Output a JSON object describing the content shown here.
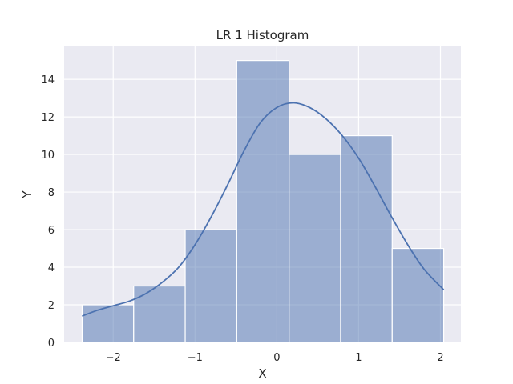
{
  "chart_data": {
    "type": "bar",
    "title": "LR 1 Histogram",
    "xlabel": "X",
    "ylabel": "Y",
    "xlim": [
      -2.6,
      2.25
    ],
    "ylim": [
      0,
      15.75
    ],
    "xticks": [
      -2,
      -1,
      0,
      1,
      2
    ],
    "xtick_labels": [
      "−2",
      "−1",
      "0",
      "1",
      "2"
    ],
    "yticks": [
      0,
      2,
      4,
      6,
      8,
      10,
      12,
      14
    ],
    "ytick_labels": [
      "0",
      "2",
      "4",
      "6",
      "8",
      "10",
      "12",
      "14"
    ],
    "grid": true,
    "bins": [
      {
        "x0": -2.38,
        "x1": -1.75,
        "count": 2
      },
      {
        "x0": -1.75,
        "x1": -1.12,
        "count": 3
      },
      {
        "x0": -1.12,
        "x1": -0.49,
        "count": 6
      },
      {
        "x0": -0.49,
        "x1": 0.15,
        "count": 15
      },
      {
        "x0": 0.15,
        "x1": 0.78,
        "count": 10
      },
      {
        "x0": 0.78,
        "x1": 1.41,
        "count": 11
      },
      {
        "x0": 1.41,
        "x1": 2.04,
        "count": 5
      }
    ],
    "kde": {
      "x": [
        -2.38,
        -2.2,
        -2.0,
        -1.8,
        -1.6,
        -1.4,
        -1.2,
        -1.0,
        -0.8,
        -0.6,
        -0.4,
        -0.2,
        0.0,
        0.2,
        0.4,
        0.6,
        0.8,
        1.0,
        1.2,
        1.4,
        1.6,
        1.8,
        2.04
      ],
      "y": [
        1.4,
        1.7,
        1.95,
        2.2,
        2.6,
        3.2,
        4.0,
        5.2,
        6.7,
        8.4,
        10.2,
        11.7,
        12.5,
        12.75,
        12.5,
        11.9,
        11.0,
        9.8,
        8.3,
        6.7,
        5.2,
        3.9,
        2.8
      ]
    },
    "colors": {
      "background": "#eaeaf2",
      "bar": "#4c72b0",
      "kde": "#4c72b0",
      "grid": "#ffffff"
    }
  }
}
